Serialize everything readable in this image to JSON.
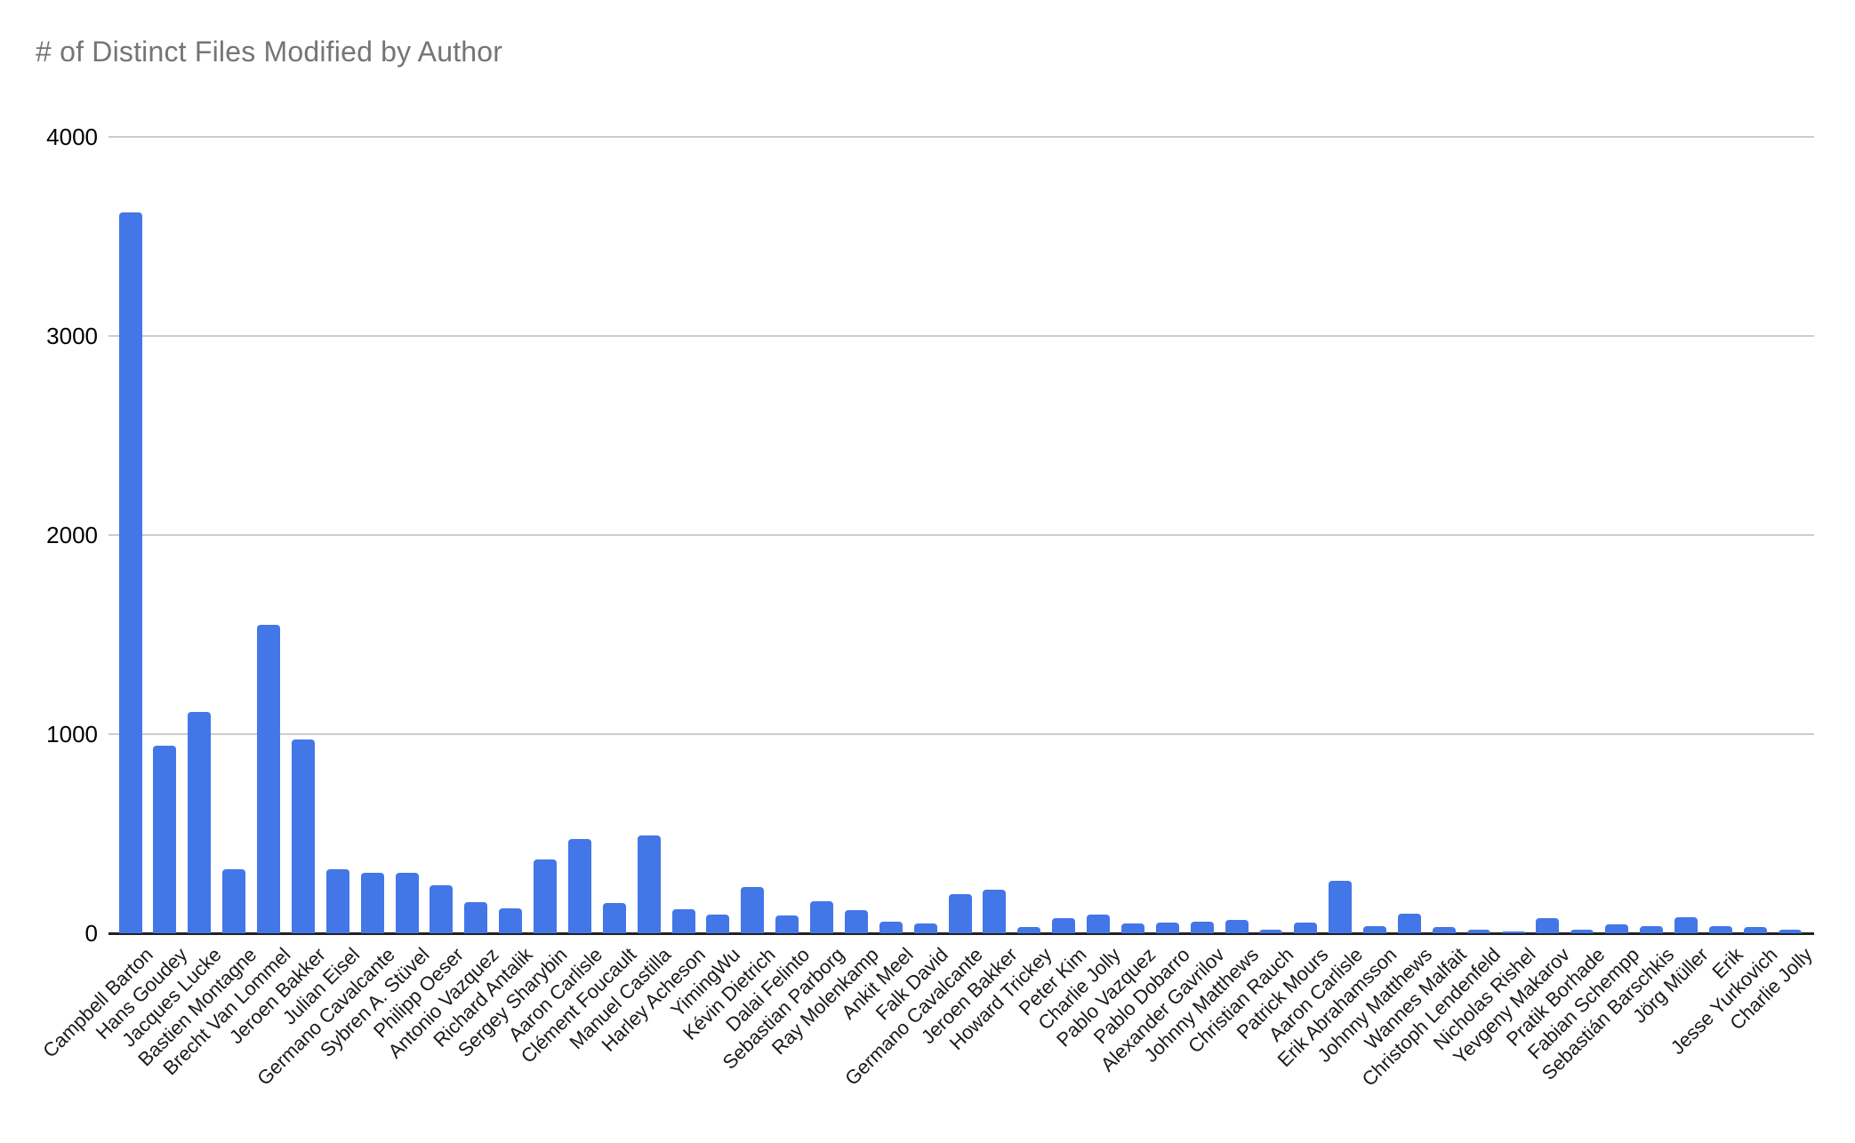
{
  "title": "# of Distinct Files Modified by Author",
  "colors": {
    "bar": "#4377E8",
    "title_text": "#757575",
    "gridline": "#CCCCCC",
    "axis_baseline": "#212121",
    "y_tick_text": "#000000",
    "x_label_text": "#1A1A1A",
    "background": "#FFFFFF"
  },
  "chart_data": {
    "type": "bar",
    "title": "# of Distinct Files Modified by Author",
    "xlabel": "",
    "ylabel": "",
    "ylim": [
      0,
      4000
    ],
    "yticks": [
      0,
      1000,
      2000,
      3000,
      4000
    ],
    "grid": true,
    "legend": "none",
    "categories": [
      "Campbell Barton",
      "Hans Goudey",
      "Jacques Lucke",
      "Bastien Montagne",
      "Brecht Van Lommel",
      "Jeroen Bakker",
      "Julian Eisel",
      "Germano Cavalcante",
      "Sybren A. Stüvel",
      "Philipp Oeser",
      "Antonio Vazquez",
      "Richard Antalik",
      "Sergey Sharybin",
      "Aaron Carlisle",
      "Clément Foucault",
      "Manuel Castilla",
      "Harley Acheson",
      "YimingWu",
      "Kévin Dietrich",
      "Dalai Felinto",
      "Sebastian Parborg",
      "Ray Molenkamp",
      "Ankit Meel",
      "Falk David",
      "Germano Cavalcante",
      "Jeroen Bakker",
      "Howard Trickey",
      "Peter Kim",
      "Charlie Jolly",
      "Pablo Vazquez",
      "Pablo Dobarro",
      "Alexander Gavrilov",
      "Johnny Matthews",
      "Christian Rauch",
      "Patrick Mours",
      "Aaron Carlisle",
      "Erik Abrahamsson",
      "Johnny Matthews",
      "Wannes Malfait",
      "Christoph Lendenfeld",
      "Nicholas Rishel",
      "Yevgeny Makarov",
      "Pratik Borhade",
      "Fabian Schempp",
      "Sebastián Barschkis",
      "Jörg Müller",
      "Erik",
      "Jesse Yurkovich",
      "Charlie Jolly"
    ],
    "values": [
      3620,
      940,
      1110,
      320,
      1550,
      975,
      320,
      305,
      305,
      240,
      155,
      125,
      370,
      475,
      150,
      490,
      120,
      95,
      230,
      90,
      160,
      115,
      60,
      50,
      195,
      220,
      30,
      75,
      95,
      50,
      55,
      60,
      65,
      20,
      55,
      265,
      35,
      100,
      30,
      20,
      10,
      75,
      20,
      45,
      35,
      80,
      35,
      30,
      20
    ]
  }
}
